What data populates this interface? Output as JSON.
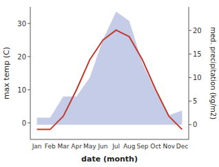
{
  "chart_data": {
    "type": "line",
    "categories": [
      "Jan",
      "Feb",
      "Mar",
      "Apr",
      "May",
      "Jun",
      "Jul",
      "Aug",
      "Sep",
      "Oct",
      "Nov",
      "Dec"
    ],
    "xlabel": "date (month)",
    "ylabel": "max temp (C)",
    "y2label": "med. precipitation (kg/m2)",
    "ylim": [
      -5,
      35
    ],
    "yticks": [
      0,
      10,
      20,
      30
    ],
    "y2lim": [
      -3.125,
      25
    ],
    "y2ticks": [
      0,
      5,
      10,
      15,
      20
    ],
    "grid": false,
    "series": [
      {
        "type": "area",
        "axis": "y2",
        "color": "#c5cce8",
        "values": [
          1.5,
          1.5,
          6,
          6,
          10,
          18,
          24,
          22,
          13,
          7,
          2,
          3
        ]
      },
      {
        "type": "line",
        "color": "#c0392b",
        "values": [
          -2,
          -2,
          2,
          10,
          19,
          25,
          28,
          26,
          19,
          10,
          2,
          -2
        ]
      }
    ]
  }
}
